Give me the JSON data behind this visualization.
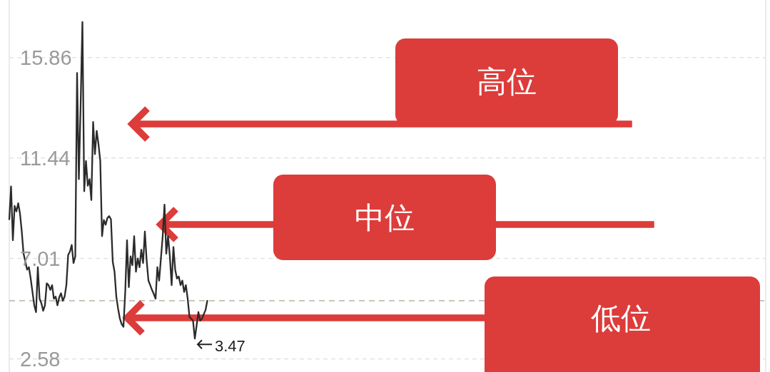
{
  "chart_data": {
    "type": "line",
    "categories": [
      null,
      null,
      null,
      null,
      null,
      null,
      null,
      null,
      null,
      null,
      null,
      null,
      null,
      null,
      null,
      null,
      null,
      null,
      null,
      null,
      null,
      null,
      null,
      null,
      null,
      null,
      null,
      null,
      null,
      null,
      null,
      null,
      null,
      null,
      null,
      null,
      null,
      null,
      null,
      null,
      null,
      null,
      null,
      null,
      null,
      null,
      null,
      null,
      null,
      null,
      null,
      null,
      null,
      null,
      null,
      null,
      null,
      null,
      null,
      null,
      null,
      null,
      null,
      null,
      null,
      null,
      null,
      null,
      null,
      null,
      null,
      null,
      null,
      null,
      null,
      null,
      null,
      null,
      null,
      null,
      null,
      null,
      null,
      null,
      null,
      null,
      null,
      null,
      null,
      null,
      null,
      null,
      null,
      null,
      null,
      null,
      null,
      null,
      null,
      null,
      null,
      null,
      null,
      null,
      null,
      null,
      null,
      null,
      null,
      null,
      null,
      null,
      null,
      null,
      null,
      null,
      null,
      null,
      null,
      null,
      null,
      null,
      null,
      null,
      null,
      null,
      null,
      null,
      null,
      null,
      null,
      null,
      null,
      null,
      null,
      null,
      null,
      null,
      null,
      null,
      null,
      null,
      null,
      null,
      null,
      null,
      null,
      null,
      null,
      null,
      null,
      null,
      null,
      null,
      null,
      null,
      null,
      null,
      null,
      null,
      null,
      null,
      null,
      null,
      null,
      null,
      null,
      null,
      null,
      null,
      null,
      null,
      null,
      null,
      null,
      null,
      null,
      null,
      null,
      null,
      null,
      null,
      null,
      null,
      null,
      null,
      null,
      null,
      null,
      null,
      null,
      null,
      null,
      null,
      null,
      null,
      null,
      null,
      null,
      null,
      null,
      null,
      null,
      null,
      null,
      null,
      null,
      null,
      null,
      null,
      null,
      null,
      null,
      null,
      null,
      null,
      null,
      null,
      null,
      null,
      null,
      null,
      null,
      null,
      null,
      null,
      null,
      null,
      null,
      null,
      null,
      null,
      null,
      null,
      null,
      null,
      null,
      null,
      null,
      null,
      null,
      null,
      null,
      null,
      null,
      null,
      null,
      null,
      null,
      null,
      null,
      null,
      null,
      null,
      null,
      null,
      null,
      null,
      null,
      null,
      null,
      null,
      null,
      null,
      null,
      null,
      null,
      null,
      null,
      null,
      null,
      null,
      null,
      null,
      null,
      null,
      null,
      null,
      null,
      null,
      null,
      null,
      null,
      null,
      null,
      null,
      null,
      null,
      null,
      null,
      null,
      null,
      null,
      null,
      null,
      null,
      null,
      null,
      null,
      null,
      null,
      null,
      null,
      null,
      null,
      null,
      null,
      null,
      null,
      null,
      null,
      null,
      null,
      null,
      null,
      null,
      null,
      null,
      null,
      null,
      null,
      null,
      null,
      null,
      null,
      null,
      null,
      null,
      null,
      null,
      null,
      null,
      null,
      null,
      null,
      null,
      null,
      null,
      null,
      null,
      null,
      null,
      null,
      null,
      null,
      null,
      null,
      null,
      null,
      null,
      null,
      null,
      null,
      null,
      null,
      null,
      null,
      null,
      null,
      null,
      null,
      null,
      null,
      null,
      null,
      null,
      null,
      null,
      null,
      null,
      null,
      null,
      null,
      null,
      null,
      null,
      null,
      null,
      null,
      null,
      null,
      null,
      null,
      null,
      null,
      null,
      null,
      null,
      null,
      null,
      null,
      null,
      null,
      null,
      null,
      null,
      null,
      null,
      null,
      null,
      null,
      null,
      null,
      null,
      null,
      null,
      null,
      null,
      null,
      null,
      null,
      null,
      null,
      null,
      null,
      null,
      null,
      null,
      null,
      null,
      null,
      null,
      null,
      null,
      null
    ],
    "series": [
      {
        "color": "#2b2b2b",
        "values": [
          8.73,
          10.18,
          7.81,
          9.32,
          9.08,
          9.44,
          8.99,
          8.19,
          7.22,
          6.86,
          6.51,
          6.62,
          6.12,
          5.53,
          4.94,
          4.64,
          6.62,
          5.23,
          5.03,
          4.7,
          4.94,
          5.91,
          5.83,
          5.62,
          5.83,
          5.23,
          5.32,
          4.94,
          5.29,
          5.47,
          5.14,
          5.32,
          5.83,
          7.16,
          7.31,
          7.6,
          6.8,
          7.1,
          15.18,
          10.5,
          13.82,
          17.43,
          9.97,
          11.3,
          10.21,
          10.5,
          9.58,
          13.02,
          11.6,
          12.63,
          12.04,
          11.3,
          7.99,
          8.7,
          8.49,
          8.79,
          8.87,
          8.73,
          6.86,
          6.42,
          5.32,
          4.79,
          4.35,
          4.11,
          3.99,
          5.53,
          7.81,
          5.74,
          7.1,
          6.71,
          7.99,
          6.42,
          7.01,
          6.62,
          7.39,
          6.8,
          8.19,
          6.92,
          6.03,
          5.83,
          5.62,
          5.44,
          5.23,
          6.62,
          6.03,
          7.01,
          7.99,
          9.38,
          7.22,
          7.99,
          7.1,
          5.83,
          7.51,
          6.51,
          6.12,
          6.21,
          5.83,
          6.03,
          5.53,
          5.83,
          5.23,
          4.43,
          4.35,
          4.26,
          3.47,
          4.05,
          4.64,
          4.26,
          4.35,
          4.55,
          4.73,
          5.14,
          null,
          null,
          null,
          null,
          null,
          null,
          null,
          null,
          null,
          null,
          null,
          null,
          null,
          null,
          null,
          null,
          null,
          null,
          null,
          null,
          null,
          null,
          null,
          null,
          null,
          null,
          null,
          null,
          null,
          null,
          null,
          null,
          null,
          null,
          null,
          null,
          null,
          null,
          null,
          null,
          null,
          null,
          null,
          null,
          null,
          null,
          null,
          null,
          null,
          null,
          null,
          null,
          null,
          null,
          null,
          null,
          null,
          null,
          null,
          null,
          null,
          null,
          null,
          null,
          null,
          null,
          null,
          null,
          null,
          null,
          null,
          null,
          null,
          null,
          null,
          null,
          null,
          null,
          null,
          null,
          null,
          null,
          null,
          null,
          null,
          null,
          null,
          null,
          null,
          null,
          null,
          null,
          null,
          null,
          null,
          null,
          null,
          null,
          null,
          null,
          null,
          null,
          null,
          null,
          null,
          null,
          null,
          null,
          null,
          null,
          null,
          null,
          null,
          null,
          null,
          null,
          null,
          null,
          null,
          null,
          null,
          null,
          null,
          null,
          null,
          null,
          null,
          null,
          null,
          null,
          null,
          null,
          null,
          null,
          null,
          null,
          null,
          null,
          null,
          null,
          null,
          null,
          null,
          null,
          null,
          null,
          null,
          null,
          null,
          null,
          null,
          null,
          null,
          null,
          null,
          null,
          null,
          null,
          null,
          null,
          null,
          null,
          null,
          null,
          null,
          null,
          null,
          null,
          null,
          null,
          null,
          null,
          null,
          null,
          null,
          null,
          null,
          null,
          null,
          null,
          null,
          null,
          null,
          null,
          null,
          null,
          null,
          null,
          null,
          null,
          null,
          null,
          null,
          null,
          null,
          null,
          null,
          null,
          null,
          null,
          null,
          null,
          null,
          null,
          null,
          null,
          null,
          null,
          null,
          null,
          null,
          null,
          null,
          null,
          null,
          null,
          null,
          null,
          null,
          null,
          null,
          null,
          null,
          null,
          null,
          null,
          null,
          null,
          null,
          null,
          null,
          null,
          null,
          null,
          null,
          null,
          null,
          null,
          null,
          null,
          null,
          null,
          null,
          null,
          null,
          null,
          null,
          null,
          null,
          null,
          null,
          null,
          null,
          null,
          null,
          null,
          null,
          null,
          null,
          null,
          null,
          null,
          null,
          null,
          null,
          null,
          null,
          null,
          null,
          null,
          null,
          null,
          null,
          null,
          null,
          null,
          null,
          null,
          null,
          null,
          null,
          null,
          null,
          null,
          null,
          null,
          null,
          null,
          null,
          null,
          null,
          null,
          null,
          null,
          null,
          null,
          null,
          null,
          null,
          null,
          null,
          null,
          null,
          null,
          null,
          null,
          null,
          null,
          null,
          null,
          null,
          null,
          null
        ],
        "value_labels": [
          null,
          null,
          null,
          null,
          null,
          null,
          null,
          null,
          null,
          null,
          null,
          null,
          null,
          null,
          null,
          null,
          null,
          null,
          null,
          null,
          null,
          null,
          null,
          null,
          null,
          null,
          null,
          null,
          null,
          null,
          null,
          null,
          null,
          null,
          null,
          null,
          null,
          null,
          null,
          null,
          null,
          null,
          null,
          null,
          null,
          null,
          null,
          null,
          null,
          null,
          null,
          null,
          null,
          null,
          null,
          null,
          null,
          null,
          null,
          null,
          null,
          null,
          null,
          null,
          null,
          null,
          null,
          null,
          null,
          null,
          null,
          null,
          null,
          null,
          null,
          null,
          null,
          null,
          null,
          null,
          null,
          null,
          null,
          null,
          null,
          null,
          null,
          null,
          null,
          null,
          null,
          null,
          null,
          null,
          null,
          null,
          null,
          null,
          null,
          null,
          null,
          null,
          null,
          null,
          "3.47",
          null,
          null,
          null,
          null,
          null,
          null,
          null,
          null,
          null,
          null,
          null,
          null,
          null,
          null,
          null,
          null,
          null,
          null,
          null,
          null,
          null,
          null,
          null,
          null,
          null,
          null,
          null,
          null,
          null,
          null,
          null,
          null,
          null,
          null,
          null,
          null,
          null,
          null,
          null,
          null,
          null,
          null,
          null,
          null,
          null,
          null,
          null,
          null,
          null,
          null,
          null,
          null,
          null,
          null,
          null,
          null,
          null,
          null,
          null,
          null,
          null,
          null,
          null,
          null,
          null,
          null,
          null,
          null,
          null,
          null,
          null,
          null,
          null,
          null,
          null,
          null,
          null,
          null,
          null,
          null,
          null,
          null,
          null,
          null,
          null,
          null,
          null,
          null,
          null,
          null,
          null,
          null,
          null,
          null,
          null,
          null,
          null,
          null,
          null,
          null,
          null,
          null,
          null,
          null,
          null,
          null,
          null,
          null,
          null,
          null,
          null,
          null,
          null,
          null,
          null,
          null,
          null,
          null,
          null,
          null,
          null,
          null,
          null,
          null,
          null,
          null,
          null,
          null,
          null,
          null,
          null,
          null,
          null,
          null,
          null,
          null,
          null,
          null,
          null,
          null,
          null,
          null,
          null,
          null,
          null,
          null,
          null,
          null,
          null,
          null,
          null,
          null,
          null,
          null,
          null,
          null,
          null,
          null,
          null,
          null,
          null,
          null,
          null,
          null,
          null,
          null,
          null,
          null,
          null,
          null,
          null,
          null,
          null,
          null,
          null,
          null,
          null,
          null,
          null,
          null,
          null,
          null,
          null,
          null,
          null,
          null,
          null,
          null,
          null,
          null,
          null,
          null,
          null,
          null,
          null,
          null,
          null,
          null,
          null,
          null,
          null,
          null,
          null,
          null,
          null,
          null,
          null,
          null,
          null,
          null,
          null,
          null,
          null,
          null,
          null,
          null,
          null,
          null,
          null,
          null,
          null,
          null,
          null,
          null,
          null,
          null,
          null,
          null,
          null,
          null,
          null,
          null,
          null,
          null,
          null,
          null,
          null,
          null,
          null,
          null,
          null,
          null,
          null,
          null,
          null,
          null,
          null,
          null,
          null,
          null,
          null,
          null,
          null,
          null,
          null,
          null,
          null,
          null,
          null,
          null,
          null,
          null,
          null,
          null,
          null,
          null,
          null,
          null,
          null,
          null,
          null,
          null,
          null,
          null,
          null,
          null,
          null,
          null,
          null,
          null,
          null,
          null,
          null,
          null,
          null,
          null,
          null,
          null,
          null,
          null,
          null,
          null,
          null,
          null,
          null,
          null,
          null,
          null,
          null,
          null,
          null,
          null,
          null,
          null,
          null,
          null,
          null,
          null,
          null,
          null,
          null,
          null,
          null,
          null,
          null,
          null,
          null,
          null,
          null,
          null
        ]
      }
    ],
    "ylim": [
      2,
      18.4
    ],
    "yticks": [
      15.86,
      11.44,
      7.01,
      2.58
    ],
    "grid": "y",
    "tick_labels": "y",
    "ref_lines": [
      {
        "axis": "y",
        "value": 5.14,
        "color": "#b4b4a4",
        "line_style": "dashed"
      }
    ],
    "annotations": [
      "高位",
      "中位",
      "低位"
    ]
  }
}
